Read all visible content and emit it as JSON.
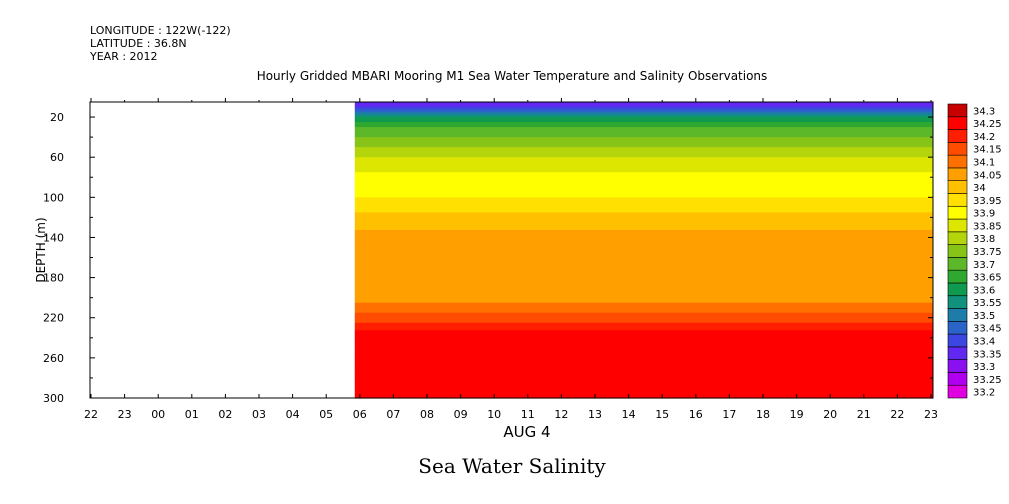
{
  "header": {
    "longitude": "LONGITUDE : 122W(-122)",
    "latitude": "LATITUDE : 36.8N",
    "year": "YEAR : 2012"
  },
  "title": "Hourly Gridded MBARI Mooring M1 Sea Water Temperature and Salinity Observations",
  "footer_title": "Sea Water Salinity",
  "chart_data": {
    "type": "heatmap",
    "title": "Hourly Gridded MBARI Mooring M1 Sea Water Temperature and Salinity Observations",
    "subtitle": "Sea Water Salinity",
    "xlabel": "AUG 4",
    "ylabel": "DEPTH (m)",
    "x_tick_labels": [
      "22",
      "23",
      "00",
      "01",
      "02",
      "03",
      "04",
      "05",
      "06",
      "07",
      "08",
      "09",
      "10",
      "11",
      "12",
      "13",
      "14",
      "15",
      "16",
      "17",
      "18",
      "19",
      "20",
      "21",
      "22",
      "23"
    ],
    "y_ticks": [
      20,
      60,
      100,
      140,
      180,
      220,
      260,
      300
    ],
    "ylim": [
      300,
      5
    ],
    "y_inverted": true,
    "data_start_tick": "06",
    "colorbar_levels": [
      33.2,
      33.25,
      33.3,
      33.35,
      33.4,
      33.45,
      33.5,
      33.55,
      33.6,
      33.65,
      33.7,
      33.75,
      33.8,
      33.85,
      33.9,
      33.95,
      34,
      34.05,
      34.1,
      34.15,
      34.2,
      34.25,
      34.3
    ],
    "colorbar_labels": [
      "33.2",
      "33.25",
      "33.3",
      "33.35",
      "33.4",
      "33.45",
      "33.5",
      "33.55",
      "33.6",
      "33.65",
      "33.7",
      "33.75",
      "33.8",
      "33.85",
      "33.9",
      "33.95",
      "34",
      "34.05",
      "34.1",
      "34.15",
      "34.2",
      "34.25",
      "34.3"
    ],
    "colors": [
      "#e000e0",
      "#b000f0",
      "#8a10f0",
      "#6028f0",
      "#3c46e0",
      "#2a64c8",
      "#1e7ca8",
      "#12927c",
      "#109a50",
      "#30a830",
      "#5cb828",
      "#88c418",
      "#b4d40c",
      "#dce600",
      "#ffff00",
      "#ffe000",
      "#ffc000",
      "#ffa000",
      "#ff7000",
      "#ff4c00",
      "#ff1e00",
      "#ff0000",
      "#c80000"
    ],
    "salinity_profile": {
      "depth": [
        5,
        10,
        15,
        20,
        25,
        30,
        40,
        50,
        60,
        75,
        100,
        110,
        125,
        135,
        145,
        205,
        215,
        225,
        235,
        245,
        280,
        300
      ],
      "salinity": [
        33.33,
        33.42,
        33.52,
        33.6,
        33.65,
        33.7,
        33.75,
        33.8,
        33.85,
        33.9,
        33.95,
        33.98,
        34.03,
        34.06,
        34.08,
        34.1,
        34.15,
        34.2,
        34.26,
        34.28,
        34.25,
        34.25
      ]
    }
  }
}
